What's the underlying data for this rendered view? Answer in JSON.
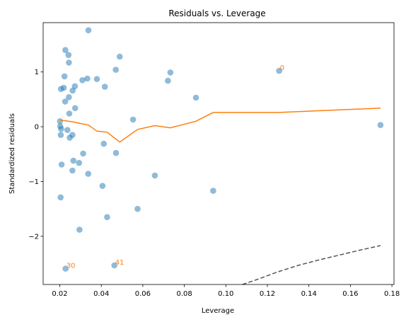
{
  "chart_data": {
    "type": "scatter",
    "title": "Residuals vs. Leverage",
    "xlabel": "Leverage",
    "ylabel": "Standardized residuals",
    "xlim": [
      0.012,
      0.181
    ],
    "ylim": [
      -2.88,
      1.9
    ],
    "xticks": [
      {
        "value": 0.02,
        "label": "0.02"
      },
      {
        "value": 0.04,
        "label": "0.04"
      },
      {
        "value": 0.06,
        "label": "0.06"
      },
      {
        "value": 0.08,
        "label": "0.08"
      },
      {
        "value": 0.1,
        "label": "0.10"
      },
      {
        "value": 0.12,
        "label": "0.12"
      },
      {
        "value": 0.14,
        "label": "0.14"
      },
      {
        "value": 0.16,
        "label": "0.16"
      },
      {
        "value": 0.18,
        "label": "0.18"
      }
    ],
    "yticks": [
      {
        "value": 1,
        "label": "1"
      },
      {
        "value": 0,
        "label": "0"
      },
      {
        "value": -1,
        "label": "−1"
      },
      {
        "value": -2,
        "label": "−2"
      }
    ],
    "grid": false,
    "colors": {
      "points": "#1f77b4",
      "smooth": "#ff7f0e",
      "cooks": "#555555",
      "annotation": "#ff7f0e"
    },
    "points": [
      {
        "x": 0.1745,
        "y": 0.03
      },
      {
        "x": 0.1257,
        "y": 1.02
      },
      {
        "x": 0.0228,
        "y": -2.59
      },
      {
        "x": 0.0463,
        "y": -2.53
      },
      {
        "x": 0.0338,
        "y": 1.76
      },
      {
        "x": 0.0227,
        "y": 1.4
      },
      {
        "x": 0.0242,
        "y": 1.31
      },
      {
        "x": 0.0489,
        "y": 1.28
      },
      {
        "x": 0.0244,
        "y": 1.17
      },
      {
        "x": 0.047,
        "y": 1.04
      },
      {
        "x": 0.0733,
        "y": 0.99
      },
      {
        "x": 0.0223,
        "y": 0.92
      },
      {
        "x": 0.0333,
        "y": 0.88
      },
      {
        "x": 0.0379,
        "y": 0.87
      },
      {
        "x": 0.0309,
        "y": 0.85
      },
      {
        "x": 0.0721,
        "y": 0.84
      },
      {
        "x": 0.0273,
        "y": 0.74
      },
      {
        "x": 0.0417,
        "y": 0.73
      },
      {
        "x": 0.0219,
        "y": 0.71
      },
      {
        "x": 0.0206,
        "y": 0.69
      },
      {
        "x": 0.0262,
        "y": 0.66
      },
      {
        "x": 0.0244,
        "y": 0.54
      },
      {
        "x": 0.0856,
        "y": 0.53
      },
      {
        "x": 0.0226,
        "y": 0.46
      },
      {
        "x": 0.0274,
        "y": 0.34
      },
      {
        "x": 0.0246,
        "y": 0.24
      },
      {
        "x": 0.0553,
        "y": 0.13
      },
      {
        "x": 0.0201,
        "y": 0.1
      },
      {
        "x": 0.0202,
        "y": 0.01
      },
      {
        "x": 0.0207,
        "y": -0.04
      },
      {
        "x": 0.0237,
        "y": -0.06
      },
      {
        "x": 0.0205,
        "y": -0.15
      },
      {
        "x": 0.0261,
        "y": -0.15
      },
      {
        "x": 0.0248,
        "y": -0.2
      },
      {
        "x": 0.0412,
        "y": -0.31
      },
      {
        "x": 0.0471,
        "y": -0.48
      },
      {
        "x": 0.0313,
        "y": -0.49
      },
      {
        "x": 0.0266,
        "y": -0.62
      },
      {
        "x": 0.0293,
        "y": -0.66
      },
      {
        "x": 0.0209,
        "y": -0.69
      },
      {
        "x": 0.0261,
        "y": -0.8
      },
      {
        "x": 0.0337,
        "y": -0.86
      },
      {
        "x": 0.0658,
        "y": -0.89
      },
      {
        "x": 0.0406,
        "y": -1.08
      },
      {
        "x": 0.0939,
        "y": -1.17
      },
      {
        "x": 0.0204,
        "y": -1.29
      },
      {
        "x": 0.0575,
        "y": -1.5
      },
      {
        "x": 0.0428,
        "y": -1.65
      },
      {
        "x": 0.0295,
        "y": -1.88
      }
    ],
    "smooth_line": {
      "x": [
        0.0202,
        0.0226,
        0.0262,
        0.0298,
        0.0338,
        0.0379,
        0.0428,
        0.0489,
        0.0575,
        0.0658,
        0.0733,
        0.0856,
        0.0939,
        0.1257,
        0.1745
      ],
      "y": [
        0.12,
        0.11,
        0.09,
        0.06,
        0.03,
        -0.08,
        -0.1,
        -0.28,
        -0.05,
        0.02,
        -0.02,
        0.1,
        0.26,
        0.26,
        0.34
      ]
    },
    "cooks_line": {
      "x": [
        0.108,
        0.115,
        0.125,
        0.135,
        0.145,
        0.155,
        0.165,
        0.1745
      ],
      "y": [
        -2.9,
        -2.79,
        -2.65,
        -2.53,
        -2.43,
        -2.34,
        -2.25,
        -2.17
      ]
    },
    "annotations": [
      {
        "label": "0",
        "x": 0.1257,
        "y": 1.02
      },
      {
        "label": "30",
        "x": 0.0228,
        "y": -2.59
      },
      {
        "label": "41",
        "x": 0.0463,
        "y": -2.53
      }
    ]
  }
}
